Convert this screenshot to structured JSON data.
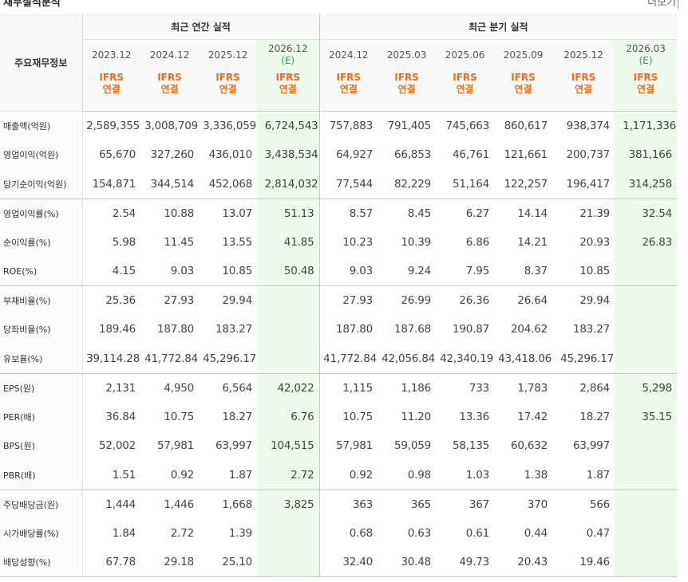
{
  "header": {
    "title": "재무실적분석",
    "more_label": "더보기"
  },
  "table": {
    "row_header_label": "주요재무정보",
    "groups": {
      "annual": "최근 연간 실적",
      "quarterly": "최근 분기 실적"
    },
    "periods": [
      "2023.12",
      "2024.12",
      "2025.12",
      "2026.12",
      "2024.12",
      "2025.03",
      "2025.06",
      "2025.09",
      "2025.12",
      "2026.03"
    ],
    "estimate_mark": "(E)",
    "ifrs_label": "IFRS",
    "consolidated_label": "연결",
    "rows": [
      {
        "label": "매출액(억원)",
        "values": [
          "2,589,355",
          "3,008,709",
          "3,336,059",
          "6,724,543",
          "757,883",
          "791,405",
          "745,663",
          "860,617",
          "938,374",
          "1,171,336"
        ]
      },
      {
        "label": "영업이익(억원)",
        "values": [
          "65,670",
          "327,260",
          "436,010",
          "3,438,534",
          "64,927",
          "66,853",
          "46,761",
          "121,661",
          "200,737",
          "381,166"
        ]
      },
      {
        "label": "당기순이익(억원)",
        "values": [
          "154,871",
          "344,514",
          "452,068",
          "2,814,032",
          "77,544",
          "82,229",
          "51,164",
          "122,257",
          "196,417",
          "314,258"
        ]
      },
      {
        "label": "영업이익률(%)",
        "values": [
          "2.54",
          "10.88",
          "13.07",
          "51.13",
          "8.57",
          "8.45",
          "6.27",
          "14.14",
          "21.39",
          "32.54"
        ]
      },
      {
        "label": "순이익률(%)",
        "values": [
          "5.98",
          "11.45",
          "13.55",
          "41.85",
          "10.23",
          "10.39",
          "6.86",
          "14.21",
          "20.93",
          "26.83"
        ]
      },
      {
        "label": "ROE(%)",
        "values": [
          "4.15",
          "9.03",
          "10.85",
          "50.48",
          "9.03",
          "9.24",
          "7.95",
          "8.37",
          "10.85",
          ""
        ]
      },
      {
        "label": "부채비율(%)",
        "values": [
          "25.36",
          "27.93",
          "29.94",
          "",
          "27.93",
          "26.99",
          "26.36",
          "26.64",
          "29.94",
          ""
        ]
      },
      {
        "label": "당좌비율(%)",
        "values": [
          "189.46",
          "187.80",
          "183.27",
          "",
          "187.80",
          "187.68",
          "190.87",
          "204.62",
          "183.27",
          ""
        ]
      },
      {
        "label": "유보율(%)",
        "values": [
          "39,114.28",
          "41,772.84",
          "45,296.17",
          "",
          "41,772.84",
          "42,056.84",
          "42,340.19",
          "43,418.06",
          "45,296.17",
          ""
        ]
      },
      {
        "label": "EPS(원)",
        "values": [
          "2,131",
          "4,950",
          "6,564",
          "42,022",
          "1,115",
          "1,186",
          "733",
          "1,783",
          "2,864",
          "5,298"
        ]
      },
      {
        "label": "PER(배)",
        "values": [
          "36.84",
          "10.75",
          "18.27",
          "6.76",
          "10.75",
          "11.20",
          "13.36",
          "17.42",
          "18.27",
          "35.15"
        ]
      },
      {
        "label": "BPS(원)",
        "values": [
          "52,002",
          "57,981",
          "63,997",
          "104,515",
          "57,981",
          "59,059",
          "58,135",
          "60,632",
          "63,997",
          ""
        ]
      },
      {
        "label": "PBR(배)",
        "values": [
          "1.51",
          "0.92",
          "1.87",
          "2.72",
          "0.92",
          "0.98",
          "1.03",
          "1.38",
          "1.87",
          ""
        ]
      },
      {
        "label": "주당배당금(원)",
        "values": [
          "1,444",
          "1,446",
          "1,668",
          "3,825",
          "363",
          "365",
          "367",
          "370",
          "566",
          ""
        ]
      },
      {
        "label": "시가배당률(%)",
        "values": [
          "1.84",
          "2.72",
          "1.39",
          "",
          "0.68",
          "0.63",
          "0.61",
          "0.44",
          "0.47",
          ""
        ]
      },
      {
        "label": "배당성향(%)",
        "values": [
          "67.78",
          "29.18",
          "25.10",
          "",
          "32.40",
          "30.48",
          "49.73",
          "20.43",
          "19.46",
          ""
        ]
      }
    ]
  }
}
